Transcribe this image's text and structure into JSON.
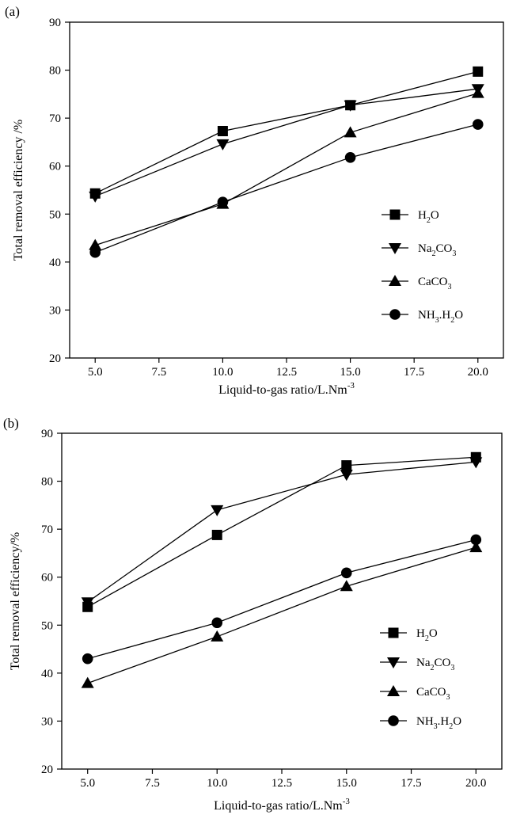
{
  "chart_data": [
    {
      "type": "line",
      "panel_label": "(a)",
      "xlabel": "Liquid-to-gas ratio/L.Nm",
      "xlabel_sup": "-3",
      "ylabel": "Total removal efficiency /%",
      "xlim": [
        4.0,
        21.0
      ],
      "ylim": [
        20,
        90
      ],
      "xticks": [
        5.0,
        7.5,
        10.0,
        12.5,
        15.0,
        17.5,
        20.0
      ],
      "xtick_labels": [
        "5.0",
        "7.5",
        "10.0",
        "12.5",
        "15.0",
        "17.5",
        "20.0"
      ],
      "yticks": [
        20,
        30,
        40,
        50,
        60,
        70,
        80,
        90
      ],
      "ytick_labels": [
        "20",
        "30",
        "40",
        "50",
        "60",
        "70",
        "80",
        "90"
      ],
      "x": [
        5.0,
        10.0,
        15.0,
        20.0
      ],
      "grid": false,
      "legend_position": "right-middle",
      "series": [
        {
          "name": "H2O",
          "legend": [
            {
              "t": "H"
            },
            {
              "t": "2",
              "sub": true
            },
            {
              "t": "O"
            }
          ],
          "marker": "square",
          "values": [
            54.3,
            67.3,
            72.7,
            79.7
          ]
        },
        {
          "name": "Na2CO3",
          "legend": [
            {
              "t": "Na"
            },
            {
              "t": "2",
              "sub": true
            },
            {
              "t": "CO"
            },
            {
              "t": "3",
              "sub": true
            }
          ],
          "marker": "triangle-down",
          "values": [
            53.7,
            64.6,
            72.7,
            76.1
          ]
        },
        {
          "name": "CaCO3",
          "legend": [
            {
              "t": "CaCO"
            },
            {
              "t": "3",
              "sub": true
            }
          ],
          "marker": "triangle-up",
          "values": [
            43.5,
            52.1,
            67.0,
            75.2
          ]
        },
        {
          "name": "NH3.H2O",
          "legend": [
            {
              "t": "NH"
            },
            {
              "t": "3",
              "sub": true
            },
            {
              "t": ".H"
            },
            {
              "t": "2",
              "sub": true
            },
            {
              "t": "O"
            }
          ],
          "marker": "circle",
          "values": [
            42.0,
            52.5,
            61.8,
            68.7
          ]
        }
      ]
    },
    {
      "type": "line",
      "panel_label": "(b)",
      "xlabel": "Liquid-to-gas ratio/L.Nm",
      "xlabel_sup": "-3",
      "ylabel": "Total removal efficiency/%",
      "xlim": [
        4.0,
        21.0
      ],
      "ylim": [
        20,
        90
      ],
      "xticks": [
        5.0,
        7.5,
        10.0,
        12.5,
        15.0,
        17.5,
        20.0
      ],
      "xtick_labels": [
        "5.0",
        "7.5",
        "10.0",
        "12.5",
        "15.0",
        "17.5",
        "20.0"
      ],
      "yticks": [
        20,
        30,
        40,
        50,
        60,
        70,
        80,
        90
      ],
      "ytick_labels": [
        "20",
        "30",
        "40",
        "50",
        "60",
        "70",
        "80",
        "90"
      ],
      "x": [
        5.0,
        10.0,
        15.0,
        20.0
      ],
      "grid": false,
      "legend_position": "right-bottom",
      "series": [
        {
          "name": "H2O",
          "legend": [
            {
              "t": "H"
            },
            {
              "t": "2",
              "sub": true
            },
            {
              "t": "O"
            }
          ],
          "marker": "square",
          "values": [
            53.8,
            68.8,
            83.3,
            85.0
          ]
        },
        {
          "name": "Na2CO3",
          "legend": [
            {
              "t": "Na"
            },
            {
              "t": "2",
              "sub": true
            },
            {
              "t": "CO"
            },
            {
              "t": "3",
              "sub": true
            }
          ],
          "marker": "triangle-down",
          "values": [
            54.8,
            74.0,
            81.4,
            84.0
          ]
        },
        {
          "name": "CaCO3",
          "legend": [
            {
              "t": "CaCO"
            },
            {
              "t": "3",
              "sub": true
            }
          ],
          "marker": "triangle-up",
          "values": [
            37.9,
            47.6,
            58.1,
            66.2
          ]
        },
        {
          "name": "NH3.H2O",
          "legend": [
            {
              "t": "NH"
            },
            {
              "t": "3",
              "sub": true
            },
            {
              "t": ".H"
            },
            {
              "t": "2",
              "sub": true
            },
            {
              "t": "O"
            }
          ],
          "marker": "circle",
          "values": [
            43.0,
            50.5,
            60.9,
            67.8
          ]
        }
      ]
    }
  ]
}
